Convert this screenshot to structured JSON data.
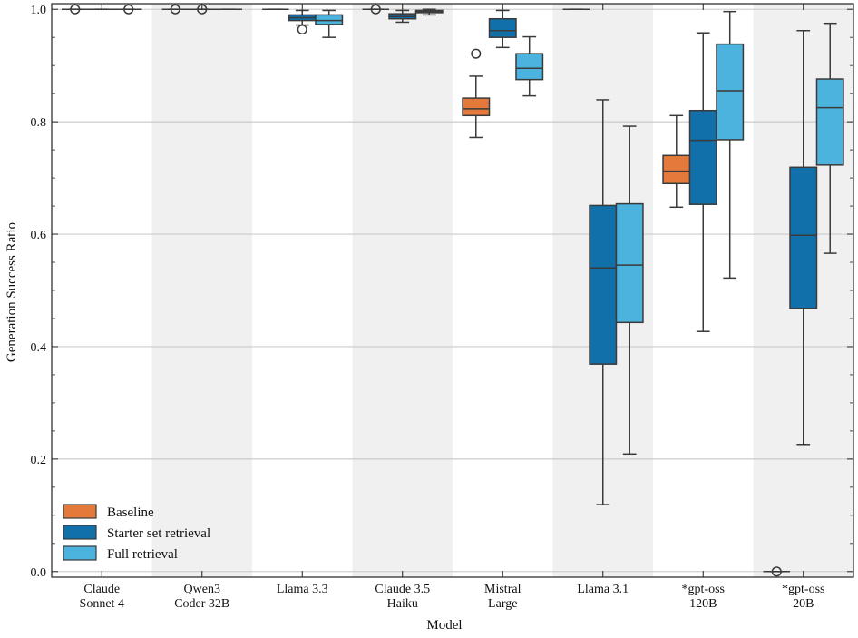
{
  "chart_data": {
    "type": "box",
    "xlabel": "Model",
    "ylabel": "Generation Success Ratio",
    "ylim": [
      -0.01,
      1.01
    ],
    "yticks": [
      "0.0",
      "0.2",
      "0.4",
      "0.6",
      "0.8",
      "1.0"
    ],
    "grid": "horizontal",
    "legend_position": "bottom-left",
    "colors": {
      "Baseline": "#e37a3c",
      "Starter set retrieval": "#1170aa",
      "Full retrieval": "#4cb3de",
      "band": "#f0f0f0",
      "grid": "#bfbfbf"
    },
    "categories": [
      [
        "Claude",
        "Sonnet 4"
      ],
      [
        "Qwen3",
        "Coder 32B"
      ],
      [
        "Llama 3.3"
      ],
      [
        "Claude 3.5",
        "Haiku"
      ],
      [
        "Mistral",
        "Large"
      ],
      [
        "Llama 3.1"
      ],
      [
        "*gpt-oss",
        "120B"
      ],
      [
        "*gpt-oss",
        "20B"
      ]
    ],
    "series": [
      {
        "name": "Baseline",
        "boxes": [
          {
            "cat": 0,
            "whislo": 1.0,
            "q1": 1.0,
            "med": 1.0,
            "q3": 1.0,
            "whishi": 1.0,
            "fliers": [
              1.0
            ]
          },
          {
            "cat": 1,
            "whislo": 1.0,
            "q1": 1.0,
            "med": 1.0,
            "q3": 1.0,
            "whishi": 1.0,
            "fliers": [
              1.0
            ]
          },
          {
            "cat": 2,
            "whislo": 1.0,
            "q1": 1.0,
            "med": 1.0,
            "q3": 1.0,
            "whishi": 1.0,
            "fliers": []
          },
          {
            "cat": 3,
            "whislo": 1.0,
            "q1": 1.0,
            "med": 1.0,
            "q3": 1.0,
            "whishi": 1.0,
            "fliers": [
              1.0
            ]
          },
          {
            "cat": 4,
            "whislo": 0.772,
            "q1": 0.811,
            "med": 0.823,
            "q3": 0.842,
            "whishi": 0.881,
            "fliers": [
              0.921
            ]
          },
          {
            "cat": 5,
            "whislo": 1.0,
            "q1": 1.0,
            "med": 1.0,
            "q3": 1.0,
            "whishi": 1.0,
            "fliers": []
          },
          {
            "cat": 6,
            "whislo": 0.648,
            "q1": 0.69,
            "med": 0.712,
            "q3": 0.74,
            "whishi": 0.811,
            "fliers": []
          },
          {
            "cat": 7,
            "whislo": 0.0,
            "q1": 0.0,
            "med": 0.0,
            "q3": 0.0,
            "whishi": 0.0,
            "fliers": [
              0.0
            ]
          }
        ]
      },
      {
        "name": "Starter set retrieval",
        "boxes": [
          {
            "cat": 0,
            "whislo": 1.0,
            "q1": 1.0,
            "med": 1.0,
            "q3": 1.0,
            "whishi": 1.0,
            "fliers": []
          },
          {
            "cat": 1,
            "whislo": 1.0,
            "q1": 1.0,
            "med": 1.0,
            "q3": 1.0,
            "whishi": 1.0,
            "fliers": [
              1.0
            ]
          },
          {
            "cat": 2,
            "whislo": 0.972,
            "q1": 0.98,
            "med": 0.985,
            "q3": 0.99,
            "whishi": 0.998,
            "fliers": [
              0.964
            ]
          },
          {
            "cat": 3,
            "whislo": 0.977,
            "q1": 0.983,
            "med": 0.987,
            "q3": 0.992,
            "whishi": 0.998,
            "fliers": []
          },
          {
            "cat": 4,
            "whislo": 0.932,
            "q1": 0.95,
            "med": 0.962,
            "q3": 0.983,
            "whishi": 0.998,
            "fliers": []
          },
          {
            "cat": 5,
            "whislo": 0.119,
            "q1": 0.369,
            "med": 0.54,
            "q3": 0.651,
            "whishi": 0.839,
            "fliers": []
          },
          {
            "cat": 6,
            "whislo": 0.427,
            "q1": 0.653,
            "med": 0.767,
            "q3": 0.82,
            "whishi": 0.958,
            "fliers": []
          },
          {
            "cat": 7,
            "whislo": 0.226,
            "q1": 0.468,
            "med": 0.598,
            "q3": 0.719,
            "whishi": 0.962,
            "fliers": []
          }
        ]
      },
      {
        "name": "Full retrieval",
        "boxes": [
          {
            "cat": 0,
            "whislo": 1.0,
            "q1": 1.0,
            "med": 1.0,
            "q3": 1.0,
            "whishi": 1.0,
            "fliers": [
              1.0
            ]
          },
          {
            "cat": 1,
            "whislo": 1.0,
            "q1": 1.0,
            "med": 1.0,
            "q3": 1.0,
            "whishi": 1.0,
            "fliers": []
          },
          {
            "cat": 2,
            "whislo": 0.95,
            "q1": 0.973,
            "med": 0.98,
            "q3": 0.99,
            "whishi": 0.998,
            "fliers": []
          },
          {
            "cat": 3,
            "whislo": 0.99,
            "q1": 0.994,
            "med": 0.996,
            "q3": 0.998,
            "whishi": 1.0,
            "fliers": []
          },
          {
            "cat": 4,
            "whislo": 0.846,
            "q1": 0.875,
            "med": 0.895,
            "q3": 0.921,
            "whishi": 0.951,
            "fliers": []
          },
          {
            "cat": 5,
            "whislo": 0.209,
            "q1": 0.443,
            "med": 0.545,
            "q3": 0.654,
            "whishi": 0.792,
            "fliers": []
          },
          {
            "cat": 6,
            "whislo": 0.522,
            "q1": 0.768,
            "med": 0.855,
            "q3": 0.938,
            "whishi": 0.996,
            "fliers": []
          },
          {
            "cat": 7,
            "whislo": 0.566,
            "q1": 0.723,
            "med": 0.825,
            "q3": 0.876,
            "whishi": 0.975,
            "fliers": []
          }
        ]
      }
    ]
  }
}
